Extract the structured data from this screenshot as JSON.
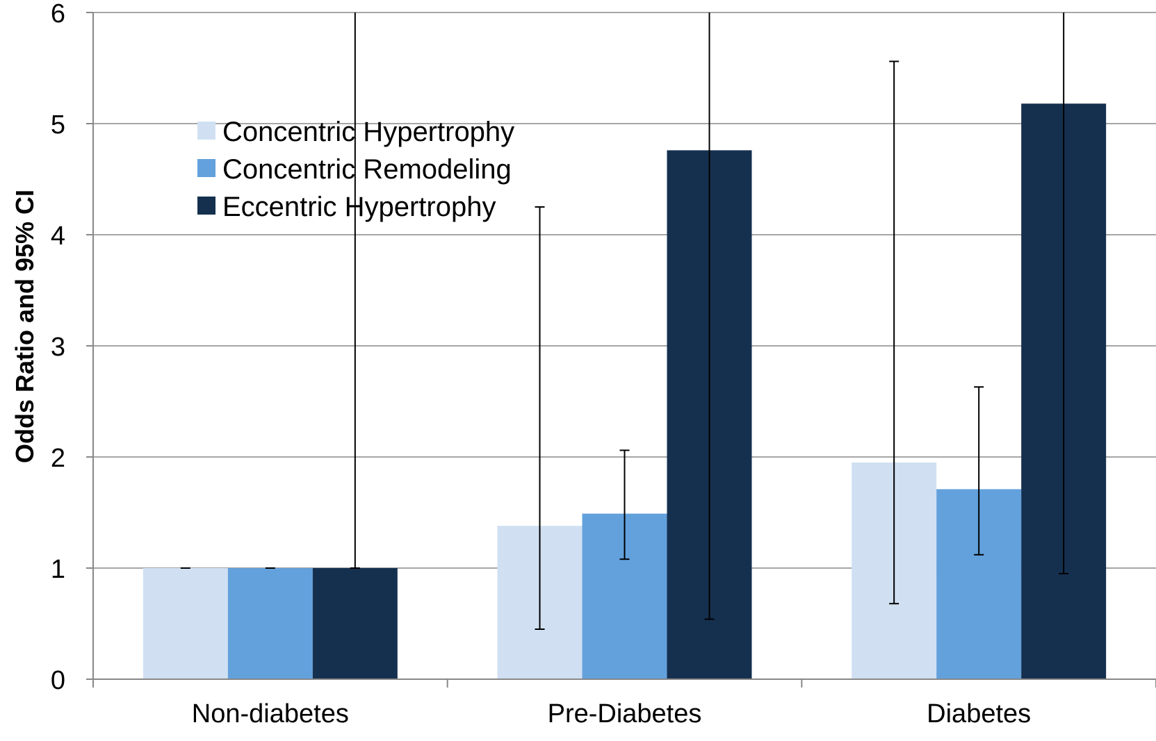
{
  "chart_data": {
    "type": "bar",
    "title": "",
    "xlabel": "",
    "ylabel": "Odds Ratio and 95% CI",
    "ylim": [
      0,
      6
    ],
    "yticks": [
      0,
      1,
      2,
      3,
      4,
      5,
      6
    ],
    "grid": true,
    "legend_position": "top-left",
    "categories": [
      "Non-diabetes",
      "Pre-Diabetes",
      "Diabetes"
    ],
    "series": [
      {
        "name": "Concentric Hypertrophy",
        "color": "#d0e0f2",
        "values": [
          1.0,
          1.38,
          1.95
        ],
        "ci_low": [
          1.0,
          0.45,
          0.68
        ],
        "ci_high": [
          1.0,
          4.25,
          5.56
        ]
      },
      {
        "name": "Concentric Remodeling",
        "color": "#63a1dc",
        "values": [
          1.0,
          1.49,
          1.71
        ],
        "ci_low": [
          1.0,
          1.08,
          1.12
        ],
        "ci_high": [
          1.0,
          2.06,
          2.63
        ]
      },
      {
        "name": "Eccentric Hypertrophy",
        "color": "#15304f",
        "values": [
          1.0,
          4.76,
          5.18
        ],
        "ci_low": [
          1.0,
          0.54,
          0.95
        ],
        "ci_high": [
          6.0,
          6.0,
          6.0
        ]
      }
    ]
  }
}
